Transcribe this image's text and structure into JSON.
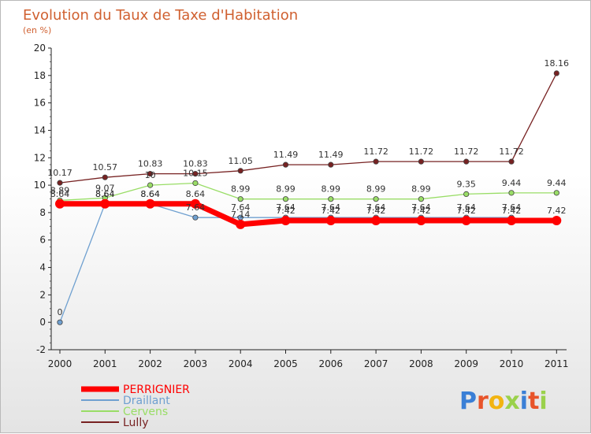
{
  "chart_data": {
    "type": "line",
    "title": "Evolution du Taux de Taxe d'Habitation",
    "ylabel": "(en %)",
    "xlabel": "",
    "categories": [
      "2000",
      "2001",
      "2002",
      "2003",
      "2004",
      "2005",
      "2006",
      "2007",
      "2008",
      "2009",
      "2010",
      "2011"
    ],
    "ylim": [
      -2,
      20
    ],
    "yticks": [
      -2,
      0,
      2,
      4,
      6,
      8,
      10,
      12,
      14,
      16,
      18,
      20
    ],
    "grid": false,
    "legend_position": "bottom-left",
    "series": [
      {
        "name": "PERRIGNIER",
        "color": "#ff0000",
        "values": [
          8.64,
          8.64,
          8.64,
          8.64,
          7.14,
          7.42,
          7.42,
          7.42,
          7.42,
          7.42,
          7.42,
          7.42
        ],
        "labels": [
          "8.64",
          "8.64",
          "8.64",
          "8.64",
          "7.14",
          "7.42",
          "7.42",
          "7.42",
          "7.42",
          "7.42",
          "7.42",
          "7.42"
        ]
      },
      {
        "name": "Draillant",
        "color": "#6fa0d0",
        "values": [
          0,
          8.64,
          8.64,
          7.64,
          7.64,
          7.64,
          7.64,
          7.64,
          7.64,
          7.64,
          7.64,
          null
        ],
        "labels": [
          "0",
          "8.64",
          "8.64",
          "7.64",
          "7.64",
          "7.64",
          "7.64",
          "7.64",
          "7.64",
          "7.64",
          "7.64",
          ""
        ]
      },
      {
        "name": "Cervens",
        "color": "#99dd66",
        "values": [
          8.89,
          9.07,
          10,
          10.15,
          8.99,
          8.99,
          8.99,
          8.99,
          8.99,
          9.35,
          9.44,
          9.44
        ],
        "labels": [
          "8.89",
          "9.07",
          "10",
          "10.15",
          "8.99",
          "8.99",
          "8.99",
          "8.99",
          "8.99",
          "9.35",
          "9.44",
          "9.44"
        ]
      },
      {
        "name": "Lully",
        "color": "#772222",
        "values": [
          10.17,
          10.57,
          10.83,
          10.83,
          11.05,
          11.49,
          11.49,
          11.72,
          11.72,
          11.72,
          11.72,
          18.16
        ],
        "labels": [
          "10.17",
          "10.57",
          "10.83",
          "10.83",
          "11.05",
          "11.49",
          "11.49",
          "11.72",
          "11.72",
          "11.72",
          "11.72",
          "18.16"
        ]
      }
    ]
  },
  "brand": {
    "letters": [
      "P",
      "r",
      "o",
      "x",
      "i",
      "t",
      "i"
    ],
    "colors": [
      "#3a7fd6",
      "#e8542a",
      "#f2b411",
      "#9ad14b",
      "#3a7fd6",
      "#e8542a",
      "#9ad14b"
    ]
  },
  "colors": {
    "title": "#d06030",
    "axis": "#222222"
  }
}
